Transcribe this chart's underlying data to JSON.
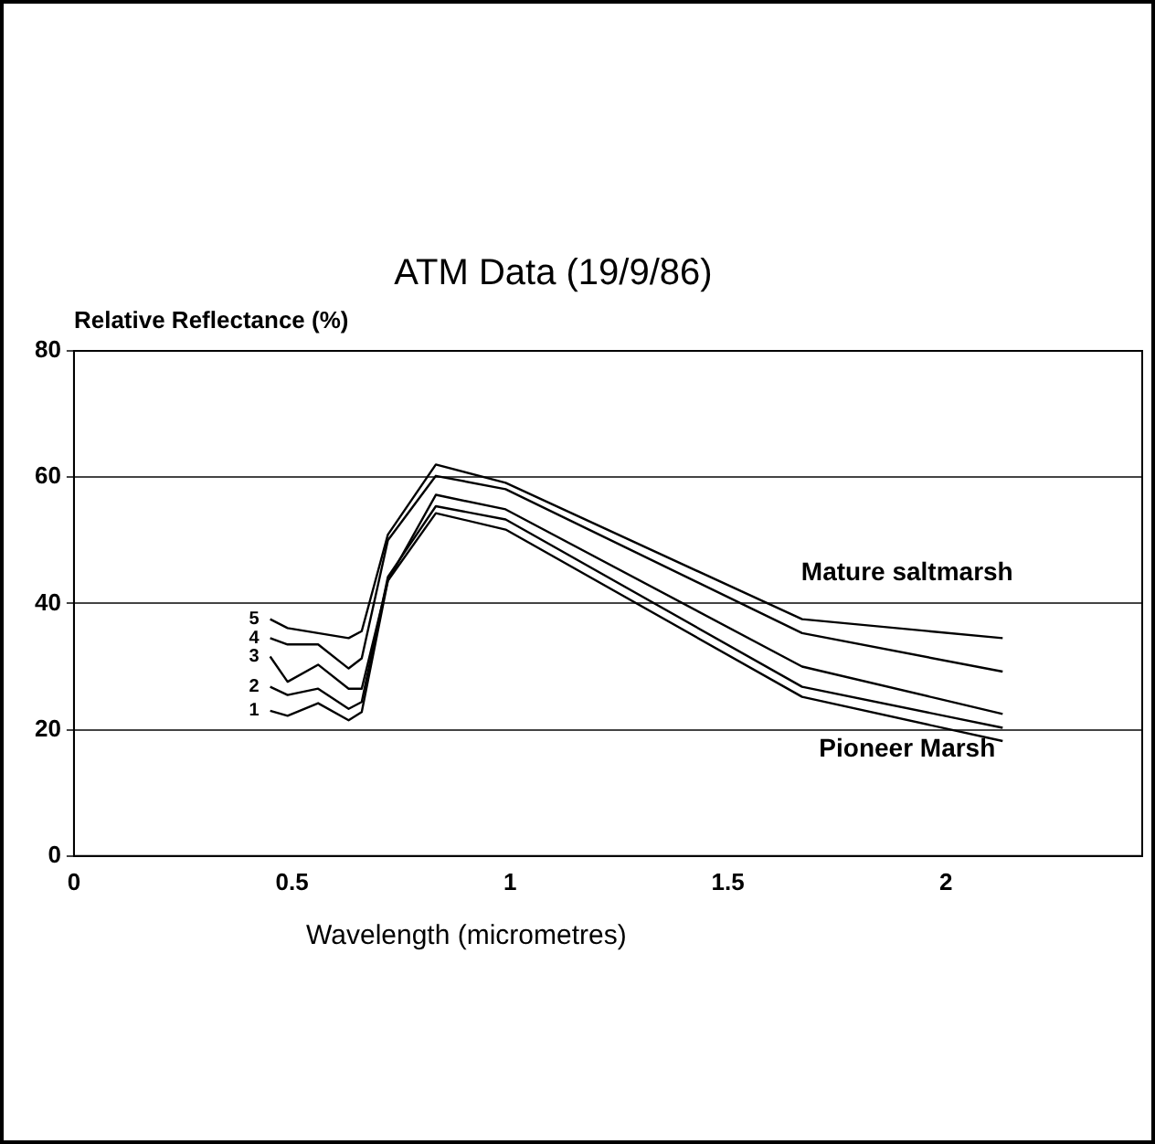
{
  "chart_data": {
    "type": "line",
    "title": "ATM Data (19/9/86)",
    "xlabel": "Wavelength (micrometres)",
    "ylabel": "Relative Reflectance (%)",
    "x": [
      0.45,
      0.49,
      0.56,
      0.63,
      0.66,
      0.72,
      0.83,
      0.99,
      1.67,
      2.13
    ],
    "series": [
      {
        "name": "1",
        "color": "#000000",
        "values": [
          23,
          22.2,
          24.2,
          21.5,
          22.8,
          43.6,
          54.3,
          51.7,
          25.2,
          18.2
        ]
      },
      {
        "name": "2",
        "color": "#000000",
        "values": [
          26.8,
          25.5,
          26.5,
          23.3,
          24.4,
          44.2,
          55.4,
          53.3,
          26.8,
          20.3
        ]
      },
      {
        "name": "3",
        "color": "#000000",
        "values": [
          31.6,
          27.6,
          30.3,
          26.5,
          26.5,
          43.6,
          57.2,
          54.9,
          30,
          22.5
        ]
      },
      {
        "name": "4",
        "color": "#000000",
        "values": [
          34.5,
          33.5,
          33.5,
          29.7,
          31.3,
          50,
          60.2,
          58.1,
          35.3,
          29.2
        ]
      },
      {
        "name": "5",
        "color": "#000000",
        "values": [
          37.5,
          36.1,
          35.3,
          34.5,
          35.6,
          50.9,
          62,
          59.1,
          37.5,
          34.5
        ]
      }
    ],
    "xlim": [
      0,
      2.45
    ],
    "xticks": [
      0,
      0.5,
      1,
      1.5,
      2
    ],
    "ylim": [
      0,
      80
    ],
    "yticks": [
      0,
      20,
      40,
      60,
      80
    ],
    "annotations": [
      "Mature saltmarsh",
      "Pioneer Marsh"
    ],
    "grid": "y",
    "legend": false,
    "marker": "none",
    "line_style": "solid"
  }
}
